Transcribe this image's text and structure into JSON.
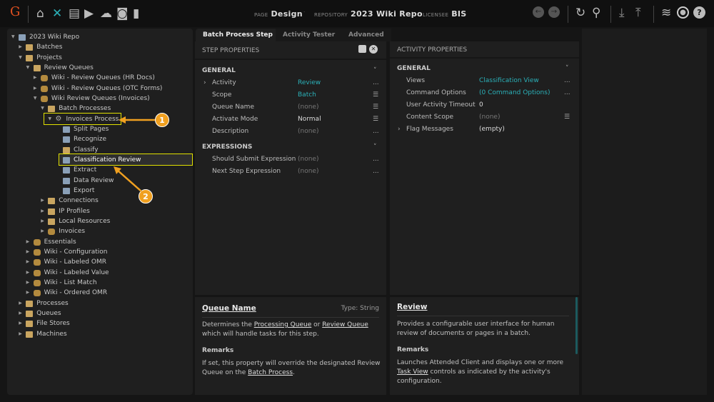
{
  "header": {
    "logo": "G",
    "page_label": "PAGE",
    "page": "Design",
    "repo_label": "REPOSITORY",
    "repo": "2023 Wiki Repo",
    "licensee_label": "LICENSEE",
    "licensee": "BIS",
    "left_icons": [
      "home-icon",
      "tools-icon",
      "archive-icon",
      "media-icon",
      "cloud-upload-icon",
      "briefcase-clock-icon",
      "bar-chart-icon"
    ],
    "right_icons": [
      "back-icon",
      "forward-icon",
      "refresh-icon",
      "search-icon",
      "download-icon",
      "upload-icon",
      "database-icon",
      "user-icon",
      "help-icon"
    ],
    "accent": "#2bb0b8"
  },
  "tree": [
    {
      "l": 0,
      "e": "open",
      "i": "repo",
      "t": "2023 Wiki Repo"
    },
    {
      "l": 1,
      "e": "closed",
      "i": "folder",
      "t": "Batches"
    },
    {
      "l": 1,
      "e": "open",
      "i": "folder",
      "t": "Projects"
    },
    {
      "l": 2,
      "e": "open",
      "i": "folder",
      "t": "Review Queues"
    },
    {
      "l": 3,
      "e": "closed",
      "i": "project",
      "t": "Wiki - Review Queues (HR Docs)"
    },
    {
      "l": 3,
      "e": "closed",
      "i": "project",
      "t": "Wiki - Review Queues (OTC Forms)"
    },
    {
      "l": 3,
      "e": "open",
      "i": "project",
      "t": "Wiki Review Queues (Invoices)"
    },
    {
      "l": 4,
      "e": "open",
      "i": "folder",
      "t": "Batch Processes"
    },
    {
      "l": 5,
      "e": "open",
      "i": "gear",
      "t": "Invoices Process",
      "hl": true
    },
    {
      "l": 6,
      "e": "",
      "i": "split",
      "t": "Split Pages"
    },
    {
      "l": 6,
      "e": "",
      "i": "recognize",
      "t": "Recognize"
    },
    {
      "l": 6,
      "e": "",
      "i": "folder",
      "t": "Classify"
    },
    {
      "l": 6,
      "e": "",
      "i": "review",
      "t": "Classification Review",
      "sel": true
    },
    {
      "l": 6,
      "e": "",
      "i": "extract",
      "t": "Extract"
    },
    {
      "l": 6,
      "e": "",
      "i": "review",
      "t": "Data Review"
    },
    {
      "l": 6,
      "e": "",
      "i": "export",
      "t": "Export"
    },
    {
      "l": 4,
      "e": "closed",
      "i": "folder",
      "t": "Connections"
    },
    {
      "l": 4,
      "e": "closed",
      "i": "folder",
      "t": "IP Profiles"
    },
    {
      "l": 4,
      "e": "closed",
      "i": "folder",
      "t": "Local Resources"
    },
    {
      "l": 4,
      "e": "closed",
      "i": "project",
      "t": "Invoices"
    },
    {
      "l": 2,
      "e": "closed",
      "i": "project",
      "t": "Essentials"
    },
    {
      "l": 2,
      "e": "closed",
      "i": "project",
      "t": "Wiki - Configuration"
    },
    {
      "l": 2,
      "e": "closed",
      "i": "project",
      "t": "Wiki - Labeled OMR"
    },
    {
      "l": 2,
      "e": "closed",
      "i": "project",
      "t": "Wiki - Labeled Value"
    },
    {
      "l": 2,
      "e": "closed",
      "i": "project",
      "t": "Wiki - List Match"
    },
    {
      "l": 2,
      "e": "closed",
      "i": "project",
      "t": "Wiki - Ordered OMR"
    },
    {
      "l": 1,
      "e": "closed",
      "i": "folder",
      "t": "Processes"
    },
    {
      "l": 1,
      "e": "closed",
      "i": "folder",
      "t": "Queues"
    },
    {
      "l": 1,
      "e": "closed",
      "i": "folder",
      "t": "File Stores"
    },
    {
      "l": 1,
      "e": "closed",
      "i": "folder",
      "t": "Machines"
    }
  ],
  "callouts": [
    "1",
    "2"
  ],
  "tabs": [
    "Batch Process Step",
    "Activity Tester",
    "Advanced"
  ],
  "step": {
    "title": "STEP PROPERTIES",
    "general": "GENERAL",
    "expressions": "EXPRESSIONS",
    "props": [
      {
        "k": "Activity",
        "v": "Review",
        "s": "link",
        "b": "...",
        "exp": true
      },
      {
        "k": "Scope",
        "v": "Batch",
        "s": "link",
        "b": "☰"
      },
      {
        "k": "Queue Name",
        "v": "(none)",
        "s": "none",
        "b": "☰"
      },
      {
        "k": "Activate Mode",
        "v": "Normal",
        "s": "",
        "b": "☰"
      },
      {
        "k": "Description",
        "v": "(none)",
        "s": "none",
        "b": "..."
      }
    ],
    "exprs": [
      {
        "k": "Should Submit Expression",
        "v": "(none)",
        "s": "none",
        "b": "..."
      },
      {
        "k": "Next Step Expression",
        "v": "(none)",
        "s": "none",
        "b": "..."
      }
    ],
    "help": {
      "title": "Queue Name",
      "type": "Type: String",
      "p1a": "Determines the ",
      "l1": "Processing Queue",
      "p1b": " or ",
      "l2": "Review Queue",
      "p1c": " which will handle tasks for this step.",
      "remarks": "Remarks",
      "p2a": "If set, this property will override the designated Review Queue on the ",
      "l3": "Batch Process",
      "p2b": "."
    }
  },
  "activity": {
    "title": "ACTIVITY PROPERTIES",
    "general": "GENERAL",
    "props": [
      {
        "k": "Views",
        "v": "Classification View",
        "s": "link",
        "b": "..."
      },
      {
        "k": "Command Options",
        "v": "(0 Command Options)",
        "s": "link",
        "b": "..."
      },
      {
        "k": "User Activity Timeout",
        "v": "0",
        "s": "",
        "b": ""
      },
      {
        "k": "Content Scope",
        "v": "(none)",
        "s": "none",
        "b": "☰"
      },
      {
        "k": "Flag Messages",
        "v": "(empty)",
        "s": "",
        "b": "",
        "exp": true
      }
    ],
    "help": {
      "title": "Review",
      "p1": "Provides a configurable user interface for human review of documents or pages in a batch.",
      "remarks": "Remarks",
      "p2a": "Launches Attended Client and displays one or more ",
      "l1": "Task View",
      "p2b": " controls as indicated by the activity's configuration."
    }
  }
}
